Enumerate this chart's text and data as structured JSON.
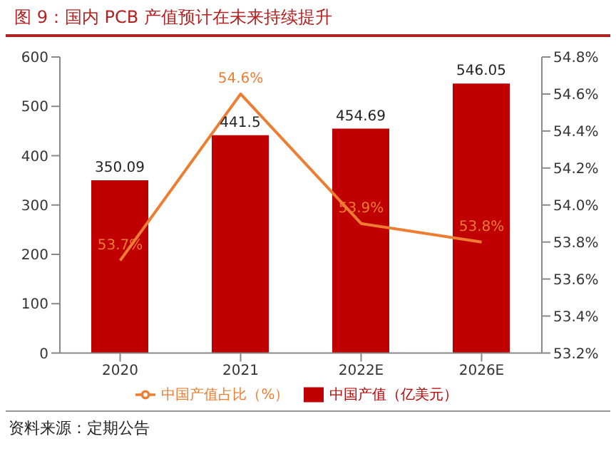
{
  "chart_data": {
    "type": "bar",
    "title": "图 9：国内 PCB 产值预计在未来持续提升",
    "categories": [
      "2020",
      "2021",
      "2022E",
      "2026E"
    ],
    "series": [
      {
        "name": "中国产值（亿美元）",
        "color": "#c00000",
        "values": [
          350.09,
          441.5,
          454.69,
          546.05
        ],
        "value_labels": [
          "350.09",
          "441.5",
          "454.69",
          "546.05"
        ]
      },
      {
        "name": "中国产值占比（%）",
        "type": "line",
        "axis": "y2",
        "color": "#ed7d31",
        "values": [
          53.7,
          54.6,
          53.9,
          53.8
        ],
        "value_labels": [
          "53.7%",
          "54.6%",
          "53.9%",
          "53.8%"
        ]
      }
    ],
    "ylim": [
      0,
      600
    ],
    "yticks": [
      0,
      100,
      200,
      300,
      400,
      500,
      600
    ],
    "y2lim": [
      53.2,
      54.8
    ],
    "y2ticks": [
      {
        "value": 53.2,
        "label": "53.2%"
      },
      {
        "value": 53.4,
        "label": "53.4%"
      },
      {
        "value": 53.6,
        "label": "53.6%"
      },
      {
        "value": 53.8,
        "label": "53.8%"
      },
      {
        "value": 54.0,
        "label": "54.0%"
      },
      {
        "value": 54.2,
        "label": "54.2%"
      },
      {
        "value": 54.4,
        "label": "54.4%"
      },
      {
        "value": 54.6,
        "label": "54.6%"
      },
      {
        "value": 54.8,
        "label": "54.8%"
      }
    ],
    "marker": "none",
    "legend": "bottom",
    "grid": false,
    "annotations": [
      "资料来源：定期公告"
    ]
  }
}
